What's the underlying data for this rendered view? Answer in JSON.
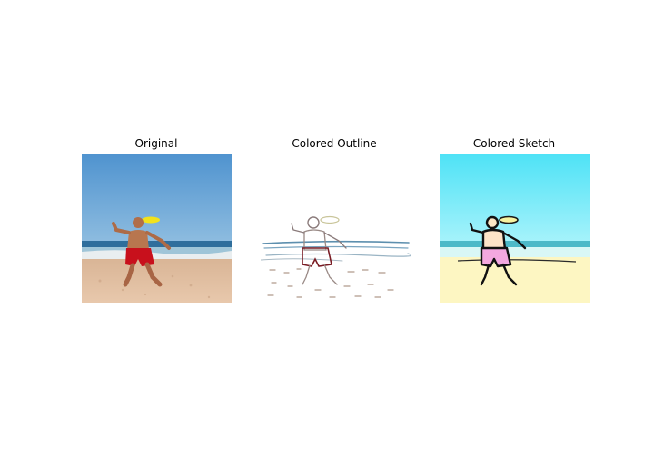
{
  "panels": [
    {
      "title": "Original",
      "image": "beach-frisbee-photo",
      "colors": {
        "sky": "#6aa6d6",
        "sand": "#e2bfa0",
        "shorts": "#c8101c"
      }
    },
    {
      "title": "Colored Outline",
      "image": "beach-frisbee-outline",
      "colors": {
        "background": "#ffffff",
        "lines": "#8a8a9a",
        "sea": "#5d8fae"
      }
    },
    {
      "title": "Colored Sketch",
      "image": "beach-frisbee-sketch",
      "colors": {
        "sky": "#5be8f8",
        "sand": "#fdf6c2",
        "shorts": "#f4a8e0"
      }
    }
  ]
}
